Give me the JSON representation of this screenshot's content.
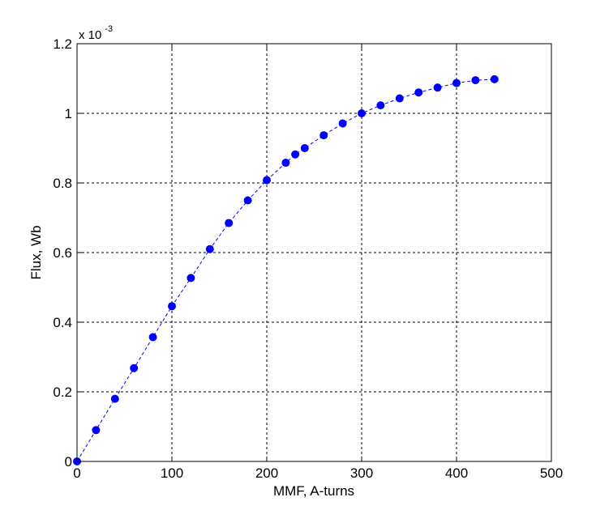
{
  "chart_data": {
    "type": "line",
    "xlabel": "MMF, A-turns",
    "ylabel": "Flux, Wb",
    "xlim": [
      0,
      500
    ],
    "ylim": [
      0,
      1.2
    ],
    "xticks": [
      "0",
      "100",
      "200",
      "300",
      "400",
      "500"
    ],
    "yticks": [
      "0",
      "0.2",
      "0.4",
      "0.6",
      "0.8",
      "1",
      "1.2"
    ],
    "y_multiplier_base": "x 10",
    "y_multiplier_exponent": "-3",
    "grid": true,
    "series_color": "#0000ff",
    "line_style": "dashed",
    "marker": "circle",
    "x": [
      0,
      20,
      40,
      60,
      80,
      100,
      120,
      140,
      160,
      180,
      200,
      220,
      230,
      240,
      260,
      280,
      300,
      320,
      340,
      360,
      380,
      400,
      420,
      440
    ],
    "y": [
      0.0,
      0.09,
      0.18,
      0.268,
      0.357,
      0.446,
      0.527,
      0.61,
      0.685,
      0.75,
      0.808,
      0.858,
      0.882,
      0.9,
      0.937,
      0.971,
      1.0,
      1.023,
      1.043,
      1.06,
      1.074,
      1.087,
      1.095,
      1.098
    ]
  }
}
